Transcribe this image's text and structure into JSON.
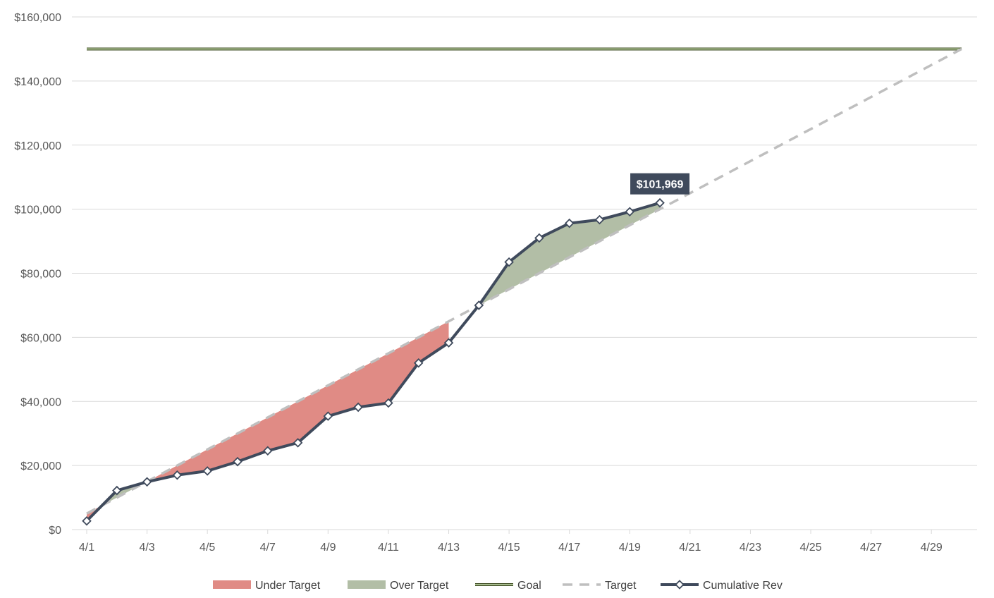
{
  "chart_data": {
    "type": "line",
    "y_tick_labels": [
      "$0",
      "$20,000",
      "$40,000",
      "$60,000",
      "$80,000",
      "$100,000",
      "$120,000",
      "$140,000",
      "$160,000"
    ],
    "y_ticks": [
      0,
      20000,
      40000,
      60000,
      80000,
      100000,
      120000,
      140000,
      160000
    ],
    "ylim": [
      0,
      160000
    ],
    "x_tick_labels": [
      "4/1",
      "4/3",
      "4/5",
      "4/7",
      "4/9",
      "4/11",
      "4/13",
      "4/15",
      "4/17",
      "4/19",
      "4/21",
      "4/23",
      "4/25",
      "4/27",
      "4/29"
    ],
    "x_tick_days": [
      1,
      3,
      5,
      7,
      9,
      11,
      13,
      15,
      17,
      19,
      21,
      23,
      25,
      27,
      29
    ],
    "xlim_days": [
      1,
      30
    ],
    "grid": "horizontal",
    "legend_position": "bottom",
    "legend": {
      "under": "Under Target",
      "over": "Over Target",
      "goal": "Goal",
      "target": "Target",
      "cumulative": "Cumulative Rev"
    },
    "series": {
      "cumulative_days": [
        1,
        2,
        3,
        4,
        5,
        6,
        7,
        8,
        9,
        10,
        11,
        12,
        13,
        14,
        15,
        16,
        17,
        18,
        19,
        20
      ],
      "cumulative_rev": [
        2700,
        12200,
        14900,
        17000,
        18300,
        21200,
        24600,
        27100,
        35400,
        38200,
        39500,
        52000,
        58300,
        70000,
        83500,
        91000,
        95600,
        96700,
        99200,
        101969
      ],
      "target_days": [
        1,
        30
      ],
      "target_values": [
        5000,
        150000
      ],
      "goal_value": 150000
    },
    "callout": {
      "label": "$101,969",
      "day": 20,
      "value": 101969
    },
    "colors": {
      "under": "#e08b85",
      "over": "#b2bea6",
      "goal_fill": "#c8e0b0",
      "goal_edge": "#3f4d25",
      "target": "#bfbfbf",
      "cumulative": "#3f4a5c",
      "grid": "#d9d9d9",
      "callout_bg": "#3f4a5c"
    }
  }
}
